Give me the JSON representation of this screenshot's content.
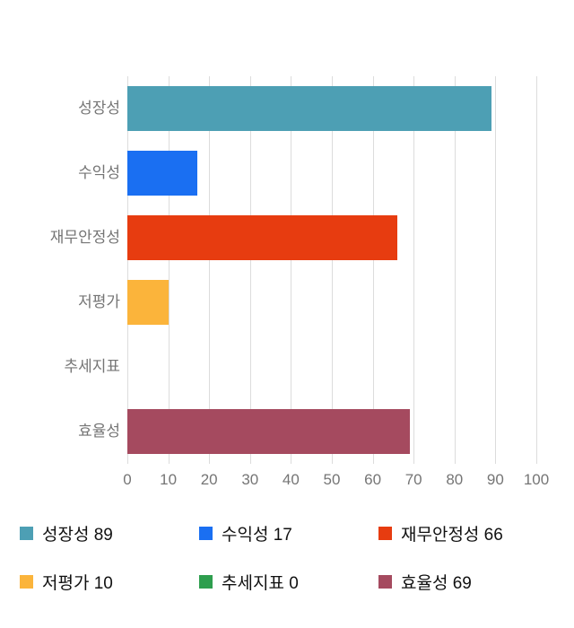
{
  "chart_data": {
    "type": "bar",
    "orientation": "horizontal",
    "title": "",
    "xlabel": "",
    "ylabel": "",
    "grid": true,
    "legend_position": "bottom",
    "categories": [
      "성장성",
      "수익성",
      "재무안정성",
      "저평가",
      "추세지표",
      "효율성"
    ],
    "values": [
      89,
      17,
      66,
      10,
      0,
      69
    ],
    "colors": [
      "#4D9FB4",
      "#1A6FF2",
      "#E73C10",
      "#FBB43B",
      "#2E9E4E",
      "#A54A5F"
    ],
    "xlim": [
      0,
      100
    ],
    "x_ticks": [
      0,
      10,
      20,
      30,
      40,
      50,
      60,
      70,
      80,
      90,
      100
    ],
    "legend": [
      {
        "label": "성장성 89",
        "color": "#4D9FB4"
      },
      {
        "label": "수익성 17",
        "color": "#1A6FF2"
      },
      {
        "label": "재무안정성 66",
        "color": "#E73C10"
      },
      {
        "label": "저평가 10",
        "color": "#FBB43B"
      },
      {
        "label": "추세지표 0",
        "color": "#2E9E4E"
      },
      {
        "label": "효율성 69",
        "color": "#A54A5F"
      }
    ]
  }
}
